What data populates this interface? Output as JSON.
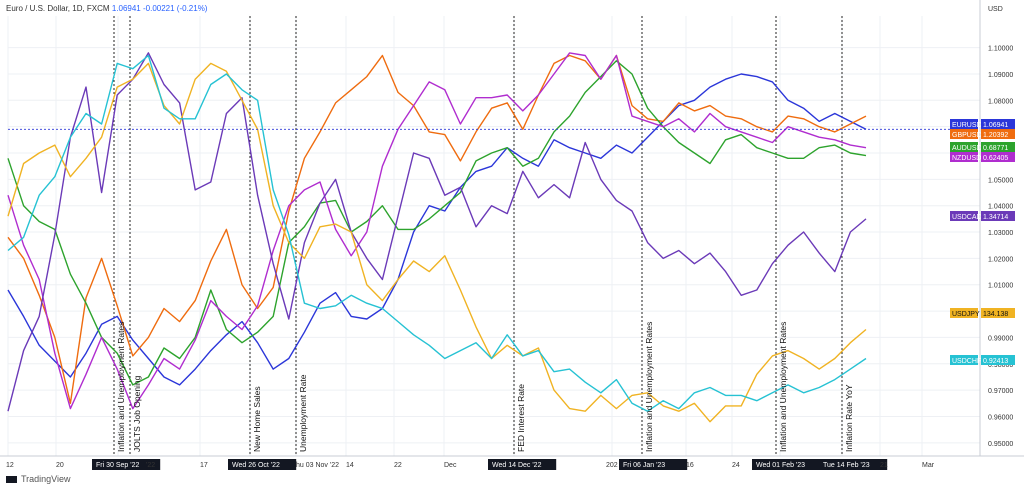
{
  "header": {
    "symbol": "Euro / U.S. Dollar, 1D, FXCM",
    "last": "1.06941",
    "change": "-0.00221 (-0.21%)"
  },
  "footer": {
    "brand": "TradingView"
  },
  "chart_data": {
    "type": "line",
    "ylabel": "USD",
    "ylim": [
      0.945,
      1.112
    ],
    "grid": true,
    "yticks": [
      "1.10000",
      "1.09000",
      "1.08000",
      "1.07000",
      "1.06000",
      "1.05000",
      "1.04000",
      "1.03000",
      "1.02000",
      "1.01000",
      "1.00000",
      "0.99000",
      "0.98000",
      "0.97000",
      "0.96000",
      "0.95000"
    ],
    "xticks": [
      "12",
      "20",
      "Fri 30 Sep '22",
      "'22",
      "17",
      "Wed 26 Oct '22",
      "hu 03 Nov '22",
      "14",
      "22",
      "Dec",
      "Wed 14 Dec '22",
      "202",
      "Fri 06 Jan '23",
      "16",
      "24",
      "Wed 01 Feb '23",
      "Tue 14 Feb '23",
      "21",
      "Mar"
    ],
    "events": [
      {
        "label": "Inflation and Unemployment Rates",
        "date": "Tue 27 Sep '22"
      },
      {
        "label": "JOLTS Job Opening",
        "date": "Fri 30 Sep '22"
      },
      {
        "label": "New Home Sales",
        "date": "Wed 26 Oct '22"
      },
      {
        "label": "Unemployment Rate",
        "date": "Thu 03 Nov '22"
      },
      {
        "label": "FED Interest Rate",
        "date": "Wed 14 Dec '22"
      },
      {
        "label": "Inflation and Unemployment Rates",
        "date": "Fri 06 Jan '23"
      },
      {
        "label": "Inflation and Unemployment Rates",
        "date": "Wed 01 Feb '23"
      },
      {
        "label": "Inflation Rate YoY",
        "date": "Tue 14 Feb '23"
      }
    ],
    "series": [
      {
        "name": "EURUSD",
        "last": "1.06941",
        "color": "#2b36d9",
        "values": [
          1.008,
          0.998,
          0.987,
          0.981,
          0.975,
          0.984,
          0.995,
          0.998,
          0.989,
          0.982,
          0.975,
          0.972,
          0.978,
          0.985,
          0.991,
          0.996,
          0.988,
          0.978,
          0.982,
          0.992,
          1.003,
          1.007,
          0.998,
          0.997,
          1.001,
          1.012,
          1.03,
          1.04,
          1.038,
          1.047,
          1.053,
          1.055,
          1.062,
          1.058,
          1.055,
          1.065,
          1.062,
          1.06,
          1.058,
          1.063,
          1.06,
          1.066,
          1.072,
          1.078,
          1.08,
          1.085,
          1.088,
          1.09,
          1.089,
          1.087,
          1.08,
          1.077,
          1.072,
          1.075,
          1.072,
          1.069
        ]
      },
      {
        "name": "GBPUSD",
        "last": "1.20392",
        "color": "#ef6c0f",
        "values": [
          1.028,
          1.02,
          1.006,
          0.99,
          0.965,
          1.005,
          1.02,
          1.002,
          0.983,
          0.99,
          1.001,
          0.996,
          1.004,
          1.019,
          1.031,
          1.01,
          1.001,
          1.009,
          1.038,
          1.058,
          1.068,
          1.079,
          1.084,
          1.089,
          1.097,
          1.083,
          1.078,
          1.068,
          1.067,
          1.057,
          1.068,
          1.077,
          1.079,
          1.069,
          1.082,
          1.094,
          1.097,
          1.095,
          1.088,
          1.097,
          1.078,
          1.073,
          1.072,
          1.079,
          1.076,
          1.078,
          1.074,
          1.073,
          1.07,
          1.068,
          1.074,
          1.073,
          1.07,
          1.068,
          1.071,
          1.074
        ]
      },
      {
        "name": "AUDUSD",
        "last": "0.68771",
        "color": "#2da32d",
        "values": [
          1.058,
          1.04,
          1.034,
          1.031,
          1.014,
          1.003,
          0.99,
          0.984,
          0.972,
          0.975,
          0.986,
          0.982,
          0.99,
          1.008,
          0.993,
          0.988,
          0.992,
          0.998,
          1.026,
          1.032,
          1.041,
          1.042,
          1.03,
          1.034,
          1.04,
          1.031,
          1.031,
          1.035,
          1.04,
          1.045,
          1.057,
          1.06,
          1.062,
          1.055,
          1.058,
          1.068,
          1.074,
          1.083,
          1.089,
          1.095,
          1.09,
          1.077,
          1.07,
          1.064,
          1.06,
          1.056,
          1.065,
          1.067,
          1.062,
          1.06,
          1.058,
          1.058,
          1.062,
          1.063,
          1.06,
          1.059
        ]
      },
      {
        "name": "NZDUSD",
        "last": "0.62405",
        "color": "#b02dcf",
        "values": [
          1.044,
          1.025,
          1.012,
          0.984,
          0.963,
          0.976,
          0.99,
          0.978,
          0.963,
          0.972,
          0.982,
          0.978,
          0.989,
          1.004,
          0.998,
          0.993,
          1.002,
          1.023,
          1.04,
          1.046,
          1.049,
          1.031,
          1.021,
          1.03,
          1.055,
          1.069,
          1.078,
          1.087,
          1.084,
          1.071,
          1.081,
          1.081,
          1.082,
          1.076,
          1.082,
          1.09,
          1.098,
          1.097,
          1.088,
          1.097,
          1.074,
          1.072,
          1.07,
          1.073,
          1.068,
          1.075,
          1.07,
          1.068,
          1.066,
          1.064,
          1.07,
          1.068,
          1.066,
          1.065,
          1.063,
          1.062
        ]
      },
      {
        "name": "USDCAD",
        "last": "1.34714",
        "color": "#6b3ab8",
        "values": [
          0.962,
          0.985,
          0.998,
          1.029,
          1.066,
          1.085,
          1.045,
          1.082,
          1.088,
          1.098,
          1.086,
          1.079,
          1.046,
          1.049,
          1.075,
          1.081,
          1.044,
          1.018,
          0.997,
          1.026,
          1.041,
          1.05,
          1.03,
          1.02,
          1.012,
          1.036,
          1.06,
          1.058,
          1.044,
          1.047,
          1.032,
          1.04,
          1.037,
          1.053,
          1.043,
          1.048,
          1.043,
          1.064,
          1.05,
          1.042,
          1.038,
          1.026,
          1.02,
          1.023,
          1.018,
          1.022,
          1.015,
          1.006,
          1.008,
          1.018,
          1.025,
          1.03,
          1.022,
          1.015,
          1.03,
          1.035
        ]
      },
      {
        "name": "USDJPY",
        "last": "134.138",
        "color": "#f0b323",
        "values": [
          1.036,
          1.056,
          1.06,
          1.063,
          1.051,
          1.058,
          1.066,
          1.085,
          1.088,
          1.094,
          1.078,
          1.071,
          1.088,
          1.094,
          1.091,
          1.08,
          1.069,
          1.04,
          1.026,
          1.02,
          1.032,
          1.033,
          1.03,
          1.01,
          1.004,
          1.012,
          1.019,
          1.015,
          1.021,
          1.008,
          0.994,
          0.982,
          0.987,
          0.983,
          0.986,
          0.97,
          0.963,
          0.962,
          0.968,
          0.963,
          0.968,
          0.969,
          0.964,
          0.962,
          0.965,
          0.958,
          0.964,
          0.964,
          0.976,
          0.983,
          0.985,
          0.982,
          0.978,
          0.982,
          0.988,
          0.993
        ]
      },
      {
        "name": "USDCHF",
        "last": "0.92413",
        "color": "#26c2d3",
        "values": [
          1.023,
          1.028,
          1.044,
          1.051,
          1.066,
          1.075,
          1.071,
          1.094,
          1.092,
          1.097,
          1.077,
          1.073,
          1.073,
          1.086,
          1.09,
          1.084,
          1.08,
          1.046,
          1.029,
          1.003,
          1.001,
          1.002,
          1.006,
          1.003,
          1.001,
          0.996,
          0.991,
          0.987,
          0.982,
          0.985,
          0.988,
          0.982,
          0.991,
          0.983,
          0.985,
          0.977,
          0.978,
          0.973,
          0.969,
          0.974,
          0.965,
          0.962,
          0.966,
          0.963,
          0.969,
          0.971,
          0.968,
          0.968,
          0.966,
          0.969,
          0.972,
          0.969,
          0.971,
          0.974,
          0.978,
          0.982
        ]
      }
    ]
  }
}
